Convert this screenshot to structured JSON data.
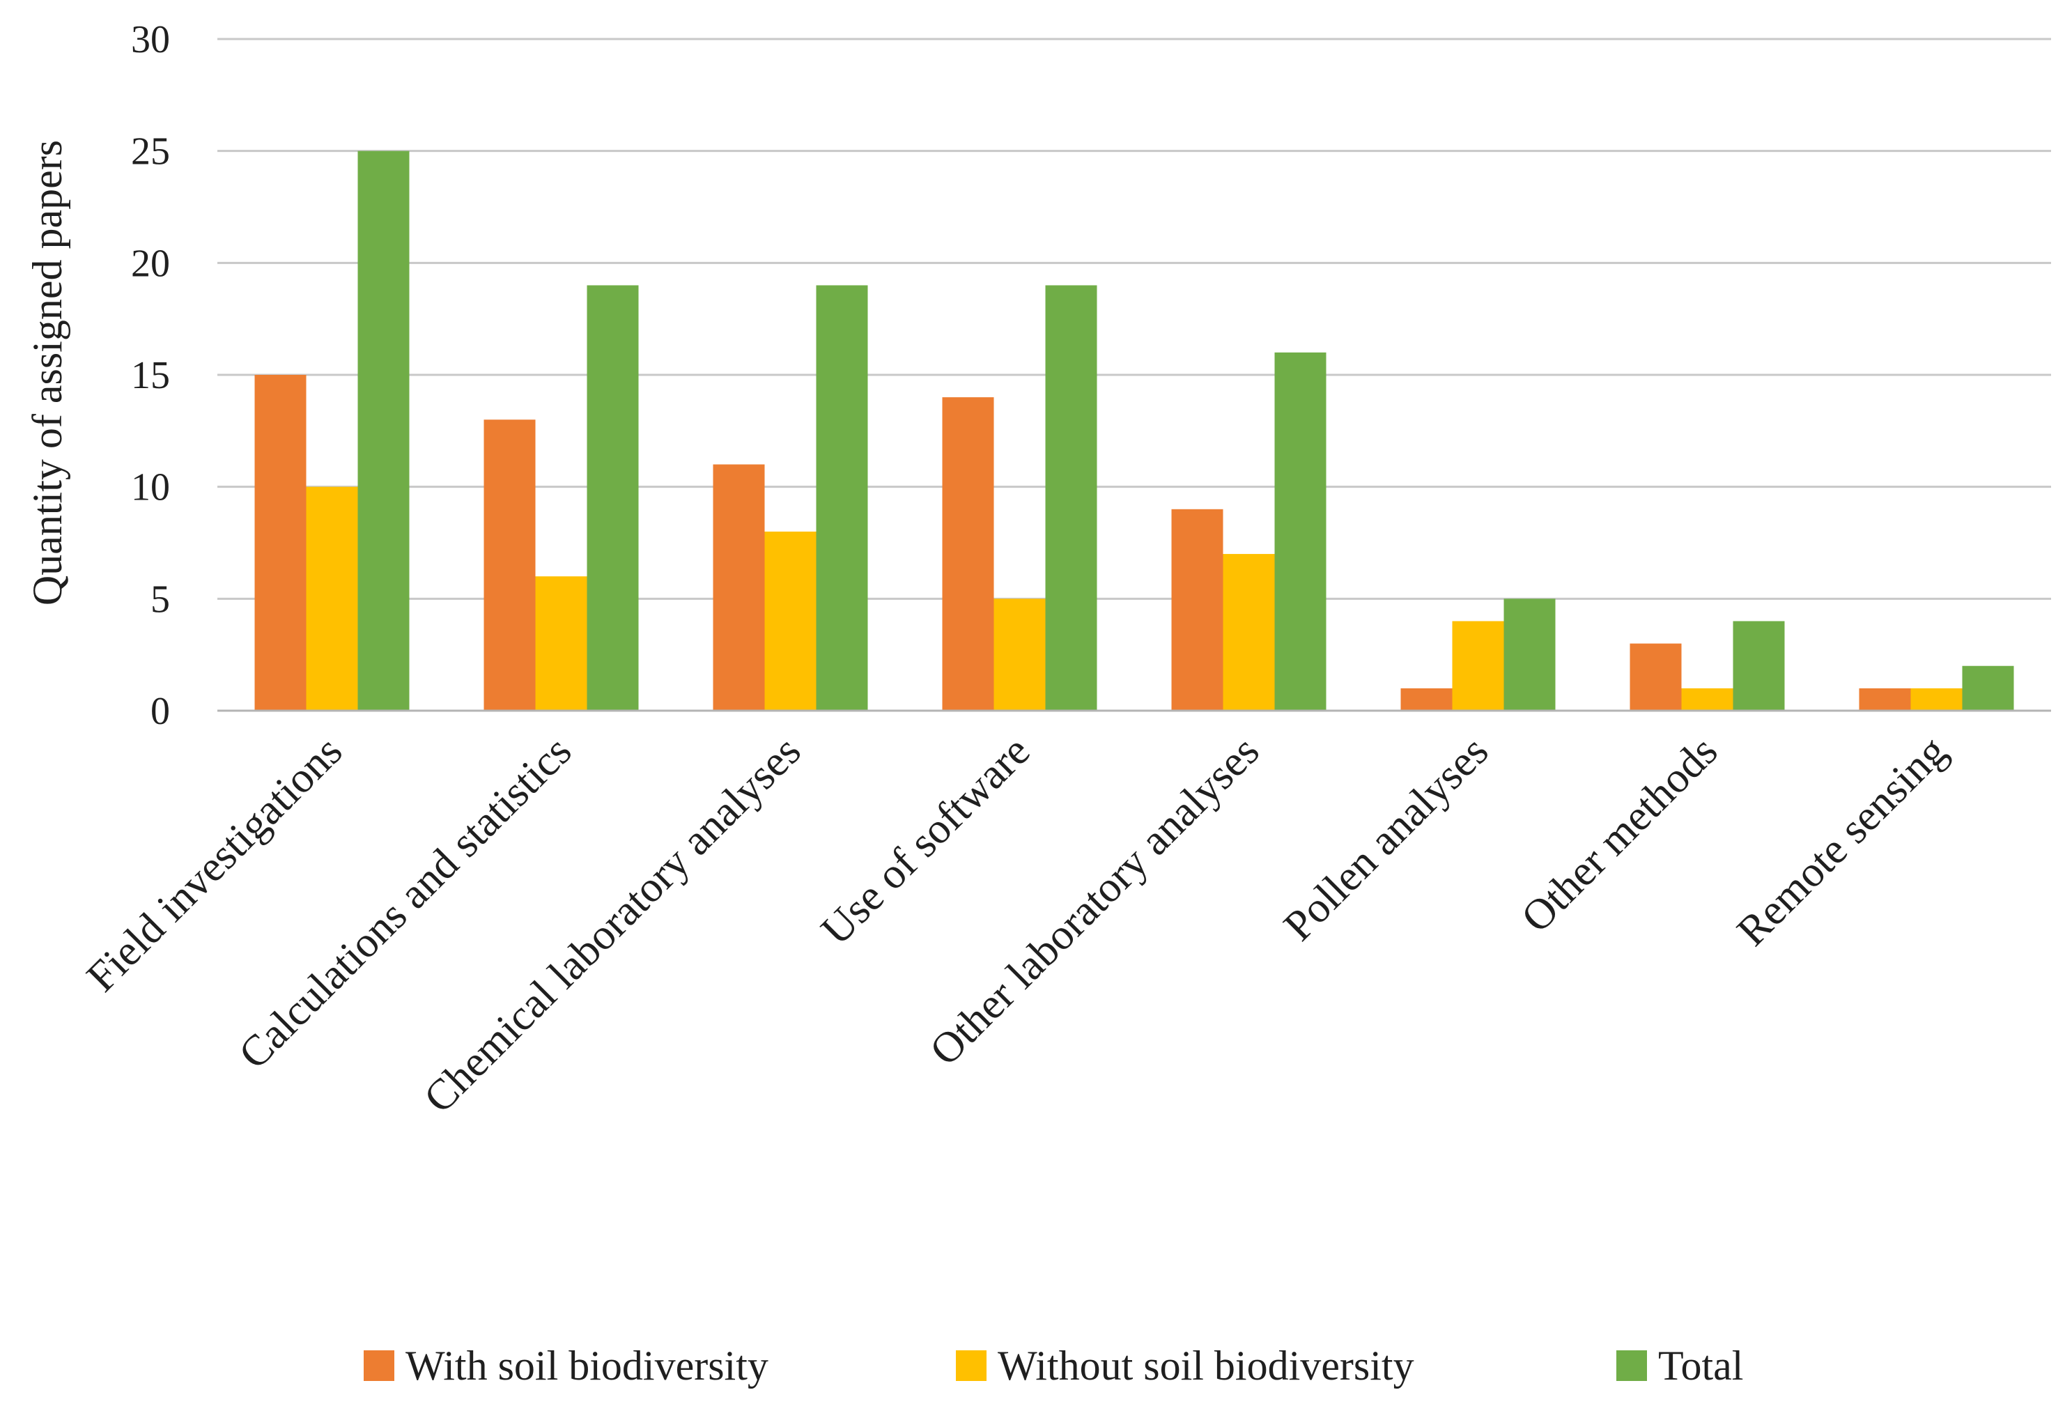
{
  "chart_data": {
    "type": "bar",
    "title": "",
    "xlabel": "",
    "ylabel": "Quantity of assigned papers",
    "ylim": [
      0,
      30
    ],
    "yticks": [
      0,
      5,
      10,
      15,
      20,
      25,
      30
    ],
    "grid": true,
    "legend_position": "bottom",
    "categories": [
      "Field investigations",
      "Calculations and statistics",
      "Chemical laboratory analyses",
      "Use of software",
      "Other laboratory analyses",
      "Pollen analyses",
      "Other methods",
      "Remote sensing"
    ],
    "series": [
      {
        "name": "With soil biodiversity",
        "color": "#ED7D31",
        "values": [
          15,
          13,
          11,
          14,
          9,
          1,
          3,
          1
        ]
      },
      {
        "name": "Without soil biodiversity",
        "color": "#FFC000",
        "values": [
          10,
          6,
          8,
          5,
          7,
          4,
          1,
          1
        ]
      },
      {
        "name": "Total",
        "color": "#70AD47",
        "values": [
          25,
          19,
          19,
          19,
          16,
          5,
          4,
          2
        ]
      }
    ]
  }
}
